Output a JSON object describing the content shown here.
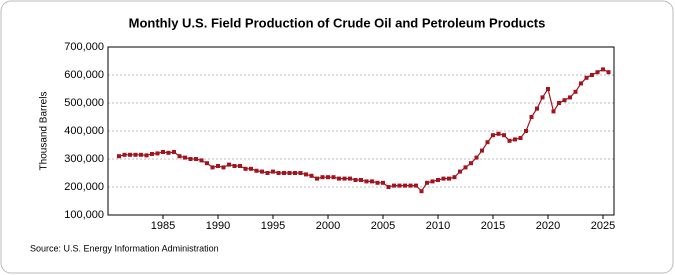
{
  "chart_data": {
    "type": "line",
    "title": "Monthly U.S. Field Production of Crude Oil and Petroleum Products",
    "y_label": "Thousand Barrels",
    "source": "Source: U.S. Energy Information Administration",
    "x": [
      1981,
      1981.5,
      1982,
      1982.5,
      1983,
      1983.5,
      1984,
      1984.5,
      1985,
      1985.5,
      1986,
      1986.5,
      1987,
      1987.5,
      1988,
      1988.5,
      1989,
      1989.5,
      1990,
      1990.5,
      1991,
      1991.5,
      1992,
      1992.5,
      1993,
      1993.5,
      1994,
      1994.5,
      1995,
      1995.5,
      1996,
      1996.5,
      1997,
      1997.5,
      1998,
      1998.5,
      1999,
      1999.5,
      2000,
      2000.5,
      2001,
      2001.5,
      2002,
      2002.5,
      2003,
      2003.5,
      2004,
      2004.5,
      2005,
      2005.5,
      2006,
      2006.5,
      2007,
      2007.5,
      2008,
      2008.5,
      2009,
      2009.5,
      2010,
      2010.5,
      2011,
      2011.5,
      2012,
      2012.5,
      2013,
      2013.5,
      2014,
      2014.5,
      2015,
      2015.5,
      2016,
      2016.5,
      2017,
      2017.5,
      2018,
      2018.5,
      2019,
      2019.5,
      2020,
      2020.5,
      2021,
      2021.5,
      2022,
      2022.5,
      2023,
      2023.5,
      2024,
      2024.5,
      2025,
      2025.5
    ],
    "series": [
      {
        "color": "#a3141e",
        "values": [
          310000,
          315000,
          315000,
          315000,
          315000,
          313000,
          318000,
          320000,
          325000,
          322000,
          325000,
          310000,
          305000,
          300000,
          300000,
          295000,
          285000,
          270000,
          275000,
          270000,
          280000,
          275000,
          275000,
          265000,
          265000,
          258000,
          255000,
          250000,
          255000,
          250000,
          250000,
          250000,
          250000,
          250000,
          245000,
          240000,
          230000,
          235000,
          235000,
          235000,
          230000,
          230000,
          230000,
          225000,
          225000,
          220000,
          220000,
          215000,
          215000,
          200000,
          205000,
          205000,
          205000,
          205000,
          205000,
          185000,
          215000,
          220000,
          225000,
          230000,
          230000,
          235000,
          255000,
          270000,
          285000,
          305000,
          330000,
          360000,
          385000,
          390000,
          385000,
          365000,
          370000,
          375000,
          400000,
          450000,
          480000,
          520000,
          550000,
          470000,
          500000,
          510000,
          520000,
          540000,
          570000,
          590000,
          600000,
          610000,
          620000,
          610000
        ]
      }
    ],
    "xlim": [
      1980,
      2026
    ],
    "xticks": [
      1985,
      1990,
      1995,
      2000,
      2005,
      2010,
      2015,
      2020,
      2025
    ],
    "ylim": [
      100000,
      700000
    ],
    "yticks": [
      {
        "value": 100000,
        "label": "100,000"
      },
      {
        "value": 200000,
        "label": "200,000"
      },
      {
        "value": 300000,
        "label": "300,000"
      },
      {
        "value": 400000,
        "label": "400,000"
      },
      {
        "value": 500000,
        "label": "500,000"
      },
      {
        "value": 600000,
        "label": "600,000"
      },
      {
        "value": 700000,
        "label": "700,000"
      }
    ],
    "grid": true
  }
}
